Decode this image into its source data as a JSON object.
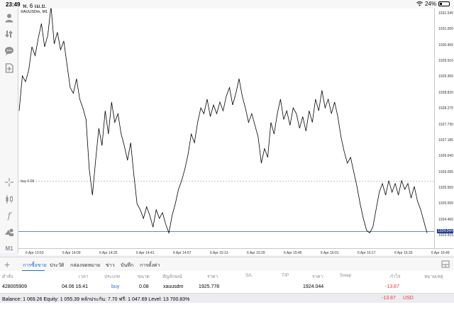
{
  "status_bar": {
    "time": "23:49",
    "date": "พ. 6 เม.ย.",
    "battery": "24%",
    "icons": [
      "wifi-icon",
      "battery-icon"
    ]
  },
  "left_toolbar": {
    "tools": [
      {
        "name": "account-icon"
      },
      {
        "name": "trade-arrows-icon"
      },
      {
        "name": "chat-icon"
      },
      {
        "name": "new-document-icon"
      },
      {
        "name": "crosshair-icon"
      },
      {
        "name": "candlestick-icon"
      },
      {
        "name": "indicator-f-icon"
      },
      {
        "name": "objects-icon"
      },
      {
        "name": "timeframe-label",
        "label": "M1"
      }
    ]
  },
  "chart": {
    "symbol_label": "XAUUSDm, M1",
    "buy_line_label": "buy 0.08",
    "colors": {
      "line": "#000000",
      "buy_line": "#9e9e9e",
      "bid_line": "#1c3b9c",
      "bid_label_bg": "#1c3b9c"
    }
  },
  "chart_data": {
    "type": "line",
    "title": "XAUUSDm, M1",
    "xlabel": "",
    "ylabel": "",
    "x_ticks": [
      "6 Apr 13:53",
      "6 Apr 14:09",
      "6 Apr 14:25",
      "6 Apr 14:41",
      "6 Apr 14:57",
      "6 Apr 15:13",
      "6 Apr 15:29",
      "6 Apr 15:45",
      "6 Apr 16:01",
      "6 Apr 16:17",
      "6 Apr 16:33",
      "6 Apr 16:49"
    ],
    "y_ticks": [
      1931.545,
      1931.0,
      1930.455,
      1929.91,
      1929.365,
      1928.82,
      1928.275,
      1927.73,
      1927.185,
      1926.64,
      1926.095,
      1925.55,
      1925.005,
      1924.46,
      1923.915
    ],
    "ylim": [
      1923.915,
      1931.82
    ],
    "current_price": 1924.044,
    "buy_line": 1925.778,
    "grid": false,
    "series": [
      {
        "name": "XAUUSDm close",
        "values": [
          1928.2,
          1929.4,
          1929.2,
          1929.6,
          1930.4,
          1930.1,
          1930.7,
          1931.2,
          1930.4,
          1930.8,
          1931.8,
          1930.5,
          1930.9,
          1930.3,
          1930.6,
          1929.8,
          1929.0,
          1928.8,
          1929.3,
          1928.6,
          1928.3,
          1927.9,
          1926.2,
          1925.3,
          1926.5,
          1927.6,
          1927.0,
          1928.2,
          1927.4,
          1928.5,
          1927.8,
          1928.1,
          1927.4,
          1927.0,
          1926.5,
          1927.1,
          1926.0,
          1925.0,
          1924.8,
          1924.5,
          1924.9,
          1924.6,
          1924.2,
          1924.8,
          1924.5,
          1924.7,
          1924.3,
          1924.0,
          1924.6,
          1925.0,
          1925.5,
          1925.8,
          1926.2,
          1926.7,
          1927.4,
          1927.1,
          1927.8,
          1928.3,
          1928.1,
          1928.6,
          1928.0,
          1928.4,
          1928.1,
          1928.5,
          1928.2,
          1928.7,
          1929.0,
          1928.4,
          1928.8,
          1929.3,
          1928.7,
          1928.3,
          1927.8,
          1928.1,
          1927.7,
          1927.3,
          1926.4,
          1926.9,
          1926.6,
          1927.8,
          1927.4,
          1928.1,
          1928.6,
          1927.9,
          1928.2,
          1927.7,
          1928.3,
          1928.1,
          1927.6,
          1928.0,
          1927.5,
          1928.2,
          1927.8,
          1928.6,
          1928.2,
          1928.9,
          1928.3,
          1928.6,
          1928.1,
          1928.5,
          1928.0,
          1927.3,
          1926.8,
          1926.4,
          1926.6,
          1926.1,
          1925.6,
          1925.0,
          1924.5,
          1924.1,
          1924.0,
          1924.2,
          1924.8,
          1925.4,
          1925.7,
          1925.3,
          1925.8,
          1925.4,
          1925.7,
          1925.3,
          1925.8,
          1925.5,
          1925.7,
          1925.2,
          1925.6,
          1925.1,
          1924.8,
          1924.4,
          1924.0
        ]
      }
    ]
  },
  "price_axis": {
    "labels": [
      "1931.545",
      "1931.000",
      "1930.455",
      "1929.910",
      "1929.365",
      "1928.820",
      "1928.275",
      "1927.730",
      "1927.185",
      "1926.640",
      "1926.095",
      "1925.550",
      "1925.005",
      "1924.460",
      "1923.915"
    ],
    "current_price_label": "1924.044"
  },
  "time_axis": {
    "labels": [
      "6 Apr 13:53",
      "6 Apr 14:09",
      "6 Apr 14:25",
      "6 Apr 14:41",
      "6 Apr 14:57",
      "6 Apr 15:13",
      "6 Apr 15:29",
      "6 Apr 15:45",
      "6 Apr 16:01",
      "6 Apr 16:17",
      "6 Apr 16:33",
      "6 Apr 16:49"
    ]
  },
  "tabs": {
    "items": [
      {
        "label": "การซื้อขาย",
        "active": true
      },
      {
        "label": "ประวัติ",
        "active": false
      },
      {
        "label": "กล่องจดหมาย",
        "active": false
      },
      {
        "label": "ข่าว",
        "active": false
      },
      {
        "label": "บันทึก",
        "active": false
      },
      {
        "label": "การตั้งค่า",
        "active": false
      }
    ],
    "accent": "#1f6fd1"
  },
  "table": {
    "headers": [
      "คำสั่ง",
      "เวลา",
      "ประเภท",
      "ขนาด",
      "สัญลักษณ์",
      "ราคา",
      "S/L",
      "T/P",
      "ราคา",
      "Swap",
      "กำไร",
      "หมายเหตุ"
    ],
    "rows": [
      {
        "order": "428005909",
        "time": "04.06 16:41",
        "type": "buy",
        "size": "0.08",
        "symbol": "xauusdm",
        "open_price": "1925.778",
        "sl": "",
        "tp": "",
        "price": "1924.044",
        "swap": "",
        "profit": "-13.87",
        "comment": ""
      }
    ]
  },
  "balance_bar": {
    "text": "Balance: 1 069.26 Equity: 1 055.39 หลักประกัน: 7.70 ฟรี: 1 047.69 Level: 13 700.83%",
    "total_profit": "-13.87",
    "currency": "USD"
  }
}
